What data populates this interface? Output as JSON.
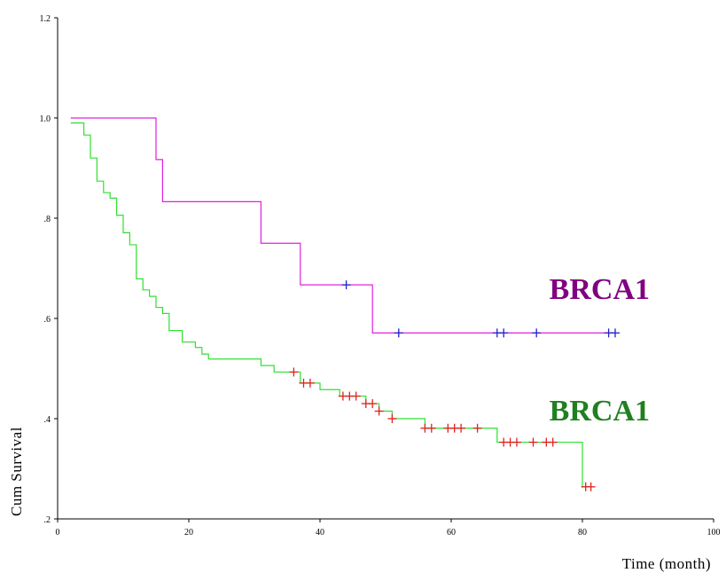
{
  "chart_data": {
    "type": "line",
    "step": true,
    "title": "",
    "xlabel": "Time (month)",
    "ylabel": "Cum Survival",
    "xlim": [
      0,
      100
    ],
    "ylim": [
      0.2,
      1.2
    ],
    "x_ticks": [
      0,
      20,
      40,
      60,
      80,
      100
    ],
    "x_tick_labels": [
      "0",
      "20",
      "40",
      "60",
      "80",
      "100"
    ],
    "y_ticks": [
      0.2,
      0.4,
      0.6,
      0.8,
      1.0,
      1.2
    ],
    "y_tick_labels": [
      ".2",
      ".4",
      ".6",
      ".8",
      "1.0",
      "1.2"
    ],
    "grid": false,
    "series": [
      {
        "name": "BRCA1",
        "color": "#e020e0",
        "censor_color": "#2020d0",
        "label_color": "#800080",
        "x": [
          2,
          15,
          16,
          31,
          37,
          48,
          85
        ],
        "y": [
          1.0,
          0.917,
          0.833,
          0.75,
          0.667,
          0.571,
          0.571
        ],
        "censored": [
          {
            "x": 44,
            "y": 0.667
          },
          {
            "x": 52,
            "y": 0.571
          },
          {
            "x": 67,
            "y": 0.571
          },
          {
            "x": 68,
            "y": 0.571
          },
          {
            "x": 73,
            "y": 0.571
          },
          {
            "x": 84,
            "y": 0.571
          },
          {
            "x": 85,
            "y": 0.571
          }
        ]
      },
      {
        "name": "BRCA1",
        "color": "#30e030",
        "censor_color": "#e02020",
        "label_color": "#208020",
        "x": [
          2,
          4,
          5,
          6,
          7,
          8,
          9,
          10,
          11,
          12,
          13,
          14,
          15,
          16,
          17,
          19,
          21,
          22,
          23,
          31,
          33,
          37,
          40,
          43,
          47,
          49,
          51,
          56,
          64,
          67,
          75,
          80,
          81
        ],
        "y": [
          0.99,
          0.966,
          0.92,
          0.874,
          0.851,
          0.84,
          0.806,
          0.771,
          0.747,
          0.679,
          0.657,
          0.644,
          0.622,
          0.61,
          0.576,
          0.553,
          0.542,
          0.529,
          0.519,
          0.506,
          0.493,
          0.471,
          0.458,
          0.445,
          0.43,
          0.415,
          0.4,
          0.381,
          0.381,
          0.353,
          0.353,
          0.264,
          0.264
        ],
        "censored": [
          {
            "x": 36,
            "y": 0.493
          },
          {
            "x": 37.5,
            "y": 0.471
          },
          {
            "x": 38.5,
            "y": 0.471
          },
          {
            "x": 43.5,
            "y": 0.445
          },
          {
            "x": 44.5,
            "y": 0.445
          },
          {
            "x": 45.5,
            "y": 0.445
          },
          {
            "x": 47,
            "y": 0.43
          },
          {
            "x": 48,
            "y": 0.43
          },
          {
            "x": 49,
            "y": 0.415
          },
          {
            "x": 51,
            "y": 0.4
          },
          {
            "x": 56,
            "y": 0.381
          },
          {
            "x": 57,
            "y": 0.381
          },
          {
            "x": 59.5,
            "y": 0.381
          },
          {
            "x": 60.5,
            "y": 0.381
          },
          {
            "x": 61.5,
            "y": 0.381
          },
          {
            "x": 64,
            "y": 0.381
          },
          {
            "x": 68,
            "y": 0.353
          },
          {
            "x": 69,
            "y": 0.353
          },
          {
            "x": 70,
            "y": 0.353
          },
          {
            "x": 72.5,
            "y": 0.353
          },
          {
            "x": 74.5,
            "y": 0.353
          },
          {
            "x": 75.5,
            "y": 0.353
          },
          {
            "x": 80.5,
            "y": 0.264
          },
          {
            "x": 81.3,
            "y": 0.264
          }
        ]
      }
    ],
    "annotations": [
      {
        "text": "BRCA1",
        "series": 0
      },
      {
        "text": "BRCA1",
        "series": 1
      }
    ]
  }
}
